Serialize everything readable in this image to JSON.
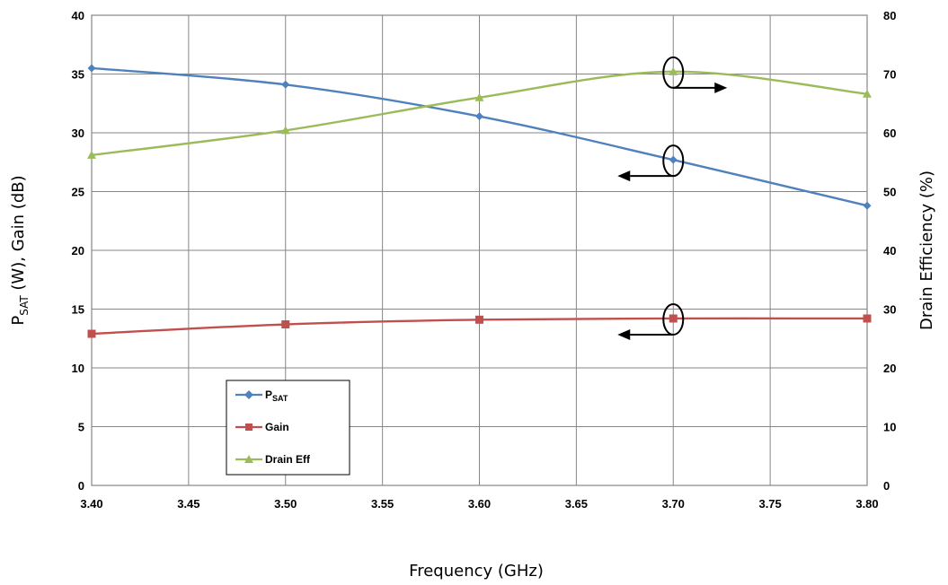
{
  "chart_data": {
    "type": "line",
    "x": [
      3.4,
      3.5,
      3.6,
      3.7,
      3.8
    ],
    "x_ticks": [
      "3.40",
      "3.45",
      "3.50",
      "3.55",
      "3.60",
      "3.65",
      "3.70",
      "3.75",
      "3.80"
    ],
    "xlim": [
      3.4,
      3.8
    ],
    "xlabel": "Frequency (GHz)",
    "y_left": {
      "label_main": "P",
      "label_sub": "SAT",
      "label_rest": " (W), Gain (dB)",
      "lim": [
        0,
        40
      ],
      "ticks": [
        "0",
        "5",
        "10",
        "15",
        "20",
        "25",
        "30",
        "35",
        "40"
      ]
    },
    "y_right": {
      "label": "Drain Efficiency (%)",
      "lim": [
        0,
        80
      ],
      "ticks": [
        "0",
        "10",
        "20",
        "30",
        "40",
        "50",
        "60",
        "70",
        "80"
      ]
    },
    "grid": true,
    "legend_position": "bottom-left",
    "series": [
      {
        "name": "P",
        "name_sub": "SAT",
        "axis": "left",
        "marker": "diamond",
        "color": "#4f81bd",
        "values": [
          35.5,
          34.1,
          31.4,
          27.7,
          23.8
        ]
      },
      {
        "name": "Gain",
        "name_sub": "",
        "axis": "left",
        "marker": "square",
        "color": "#c0504d",
        "values": [
          12.9,
          13.7,
          14.1,
          14.2,
          14.2
        ]
      },
      {
        "name": "Drain Eff",
        "name_sub": "",
        "axis": "right",
        "marker": "triangle",
        "color": "#9bbb59",
        "values": [
          56.2,
          60.4,
          66.0,
          70.4,
          66.6
        ]
      }
    ],
    "annotations": [
      {
        "target_series": "Drain Eff",
        "x": 3.7,
        "arrow_direction": "right"
      },
      {
        "target_series": "P",
        "x": 3.7,
        "arrow_direction": "left"
      },
      {
        "target_series": "Gain",
        "x": 3.7,
        "arrow_direction": "left"
      }
    ]
  }
}
